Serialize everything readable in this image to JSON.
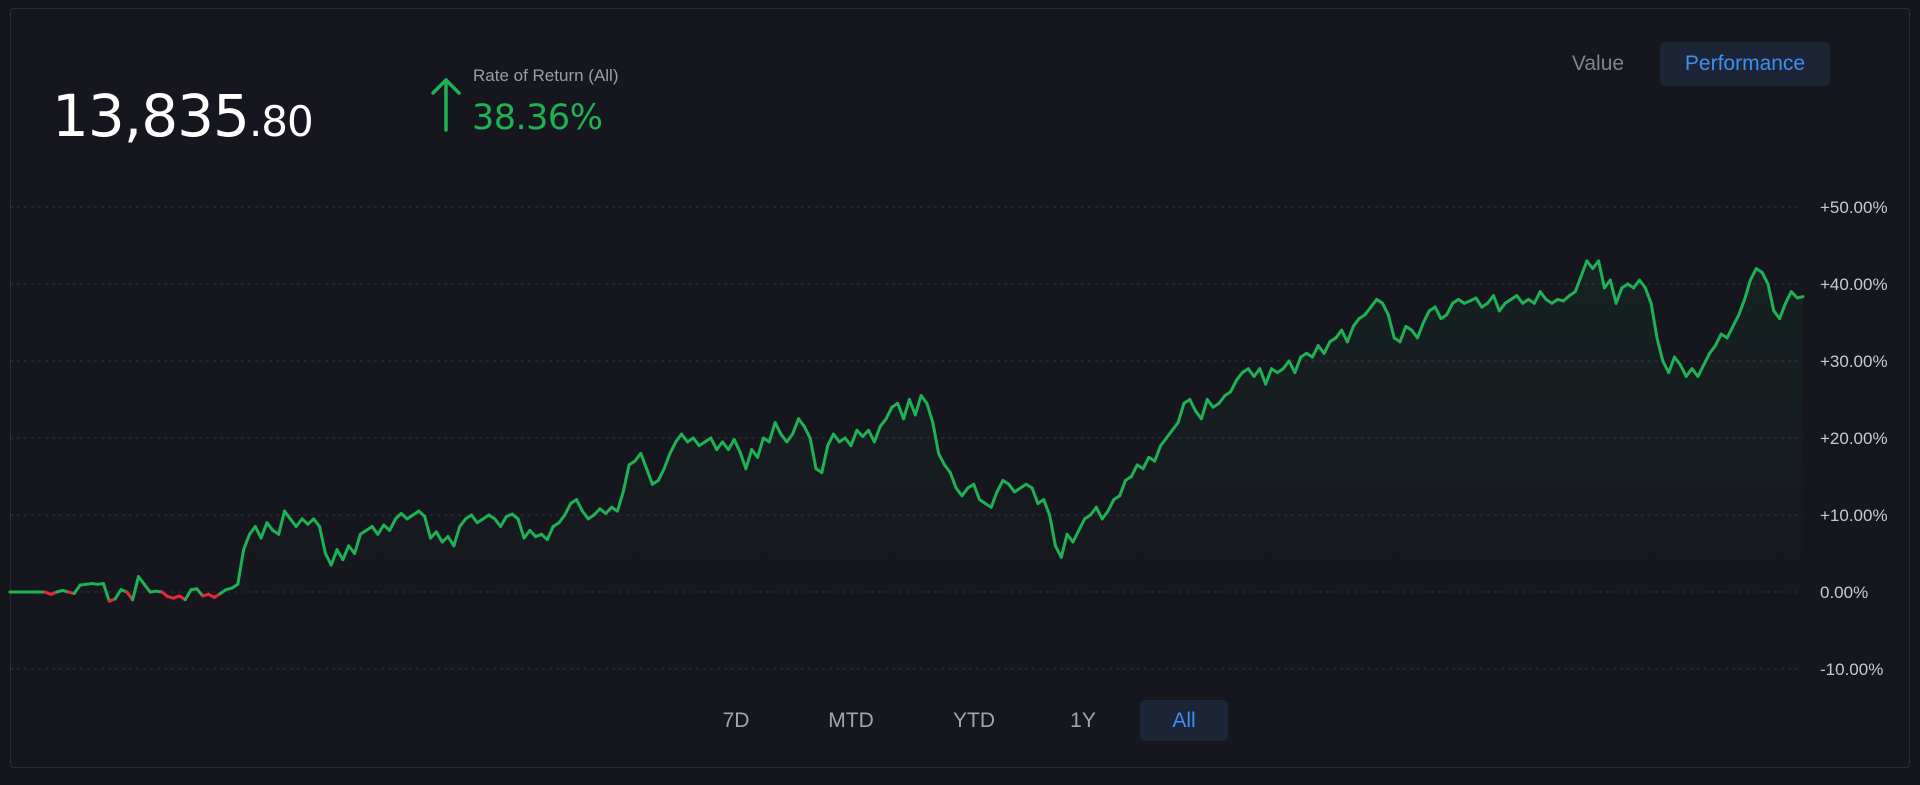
{
  "portfolio": {
    "value_integer": "13,835",
    "value_decimal": ".80"
  },
  "rate_of_return": {
    "label": "Rate of Return (All)",
    "value": "38.36%",
    "direction": "up",
    "color": "#1eb254"
  },
  "view_toggle": {
    "options": [
      "Value",
      "Performance"
    ],
    "selected": "Performance"
  },
  "time_range": {
    "options": [
      "7D",
      "MTD",
      "YTD",
      "1Y",
      "All"
    ],
    "selected": "All"
  },
  "colors": {
    "background": "#15161c",
    "positive": "#1eb254",
    "negative": "#e3293b",
    "accent": "#3d8fef"
  },
  "chart_data": {
    "type": "area",
    "title": "",
    "xlabel": "",
    "ylabel": "",
    "ylim": [
      -10,
      50
    ],
    "y_tick_labels": [
      "+50.00%",
      "+40.00%",
      "+30.00%",
      "+20.00%",
      "+10.00%",
      "0.00%",
      "-10.00%"
    ],
    "grid": true,
    "axis_position": "right",
    "series": [
      {
        "values": [
          0,
          0,
          0,
          0,
          0,
          0,
          0,
          -0.3,
          0,
          0.2,
          0,
          -0.2,
          0.9,
          1.0,
          1.1,
          1.0,
          1.1,
          -1.2,
          -0.9,
          0.3,
          0,
          -1.0,
          2.0,
          1.0,
          0,
          0.1,
          0,
          -0.6,
          -0.8,
          -0.5,
          -1.0,
          0.3,
          0.4,
          -0.5,
          -0.3,
          -0.7,
          -0.2,
          0.3,
          0.5,
          1.0,
          5.5,
          7.5,
          8.5,
          7.0,
          9.0,
          8.0,
          7.5,
          10.5,
          9.5,
          8.5,
          9.5,
          8.8,
          9.5,
          8.5,
          5.0,
          3.5,
          5.5,
          4.2,
          6.0,
          5.0,
          7.5,
          8.0,
          8.5,
          7.5,
          8.7,
          8.0,
          9.5,
          10.2,
          9.5,
          10.0,
          10.5,
          9.8,
          7.0,
          7.8,
          6.5,
          7.2,
          6.0,
          8.5,
          9.5,
          10.0,
          9.0,
          9.5,
          10.0,
          9.5,
          8.5,
          9.8,
          10.1,
          9.5,
          7.0,
          8.0,
          7.2,
          7.5,
          6.8,
          8.5,
          9.0,
          10.0,
          11.5,
          12.0,
          10.5,
          9.5,
          10.0,
          10.8,
          10.2,
          11.0,
          10.5,
          13.0,
          16.5,
          17.0,
          18.0,
          16.0,
          14.0,
          14.5,
          16.0,
          18.0,
          19.5,
          20.5,
          19.5,
          20.0,
          19.0,
          19.5,
          20.0,
          18.5,
          19.5,
          18.5,
          19.8,
          18.2,
          16.0,
          18.5,
          17.5,
          20.0,
          19.5,
          22.0,
          20.5,
          19.5,
          20.5,
          22.5,
          21.5,
          20.0,
          16.0,
          15.5,
          19.0,
          20.5,
          19.5,
          20.0,
          19.0,
          21.0,
          20.2,
          21.0,
          19.5,
          21.5,
          22.5,
          24.0,
          24.5,
          22.5,
          25.0,
          23.0,
          25.5,
          24.5,
          22.0,
          18.0,
          16.5,
          15.5,
          13.5,
          12.5,
          13.5,
          14.0,
          12.0,
          11.5,
          11.0,
          13.0,
          14.5,
          14.0,
          13.0,
          13.5,
          14.0,
          13.5,
          11.5,
          12.0,
          10.0,
          6.0,
          4.5,
          7.5,
          6.5,
          8.0,
          9.5,
          10.0,
          11.0,
          9.5,
          10.5,
          12.0,
          12.5,
          14.5,
          15.0,
          16.5,
          16.0,
          17.5,
          17.0,
          19.0,
          20.0,
          21.0,
          22.0,
          24.5,
          25.0,
          23.5,
          22.5,
          25.0,
          24.0,
          24.5,
          25.5,
          26.0,
          27.5,
          28.5,
          29.0,
          28.0,
          29.0,
          27.0,
          29.0,
          28.5,
          29.0,
          30.0,
          28.5,
          30.5,
          31.0,
          30.5,
          32.0,
          31.0,
          32.5,
          33.0,
          34.0,
          32.5,
          34.5,
          35.5,
          36.0,
          37.0,
          38.0,
          37.5,
          36.0,
          33.0,
          32.5,
          34.5,
          34.0,
          33.0,
          35.0,
          36.5,
          37.0,
          35.5,
          36.0,
          37.5,
          38.0,
          37.5,
          37.8,
          38.2,
          37.0,
          37.5,
          38.5,
          36.5,
          37.5,
          38.0,
          38.5,
          37.5,
          38.0,
          37.5,
          39.0,
          38.0,
          37.5,
          38.0,
          37.8,
          38.5,
          39.0,
          41.0,
          43.0,
          42.0,
          43.0,
          39.5,
          40.5,
          37.5,
          39.5,
          40.0,
          39.5,
          40.5,
          39.5,
          37.5,
          33.0,
          30.0,
          28.5,
          30.5,
          29.5,
          28.0,
          29.0,
          28.0,
          29.5,
          31.0,
          32.0,
          33.5,
          33.0,
          34.5,
          36.0,
          38.0,
          40.5,
          42.0,
          41.5,
          40.0,
          36.5,
          35.5,
          37.5,
          39.0,
          38.2,
          38.36
        ]
      }
    ]
  }
}
